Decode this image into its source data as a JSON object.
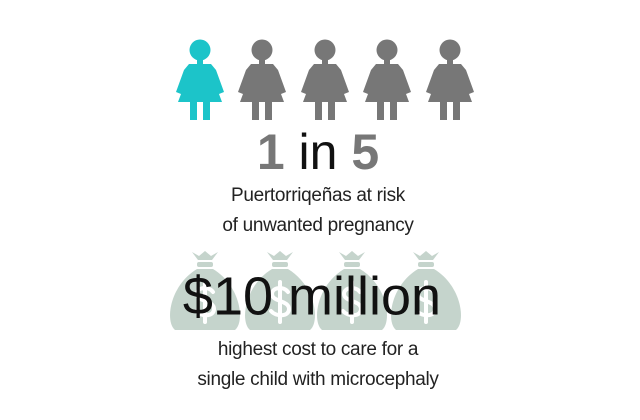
{
  "stat_people": {
    "parts": [
      "1",
      "in",
      "5"
    ],
    "caption": [
      "Puertorriqeñas at risk",
      "of unwanted pregnancy"
    ]
  },
  "stat_cost": {
    "amount": "$10 million",
    "caption": [
      "highest cost to care for a",
      "single child with microcephaly"
    ]
  }
}
